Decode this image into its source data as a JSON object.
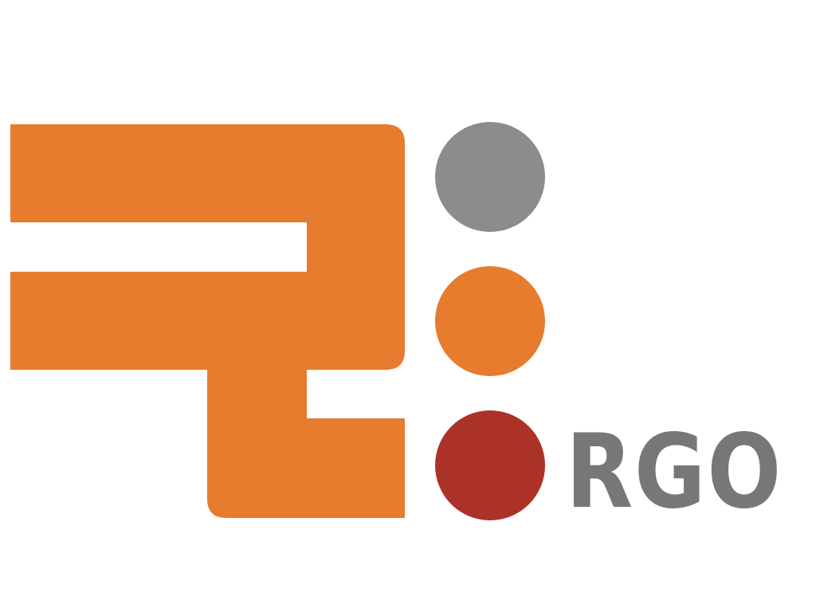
{
  "logo": {
    "wordmark": "RGO",
    "colors": {
      "orange": "#E77B2E",
      "gray": "#8C8C8C",
      "red": "#AC3228",
      "wordmark": "#777777",
      "background": "#FFFFFF"
    },
    "dots": [
      {
        "name": "gray-dot",
        "color": "#8C8C8C"
      },
      {
        "name": "orange-dot",
        "color": "#E77B2E"
      },
      {
        "name": "red-dot",
        "color": "#AC3228"
      }
    ]
  }
}
